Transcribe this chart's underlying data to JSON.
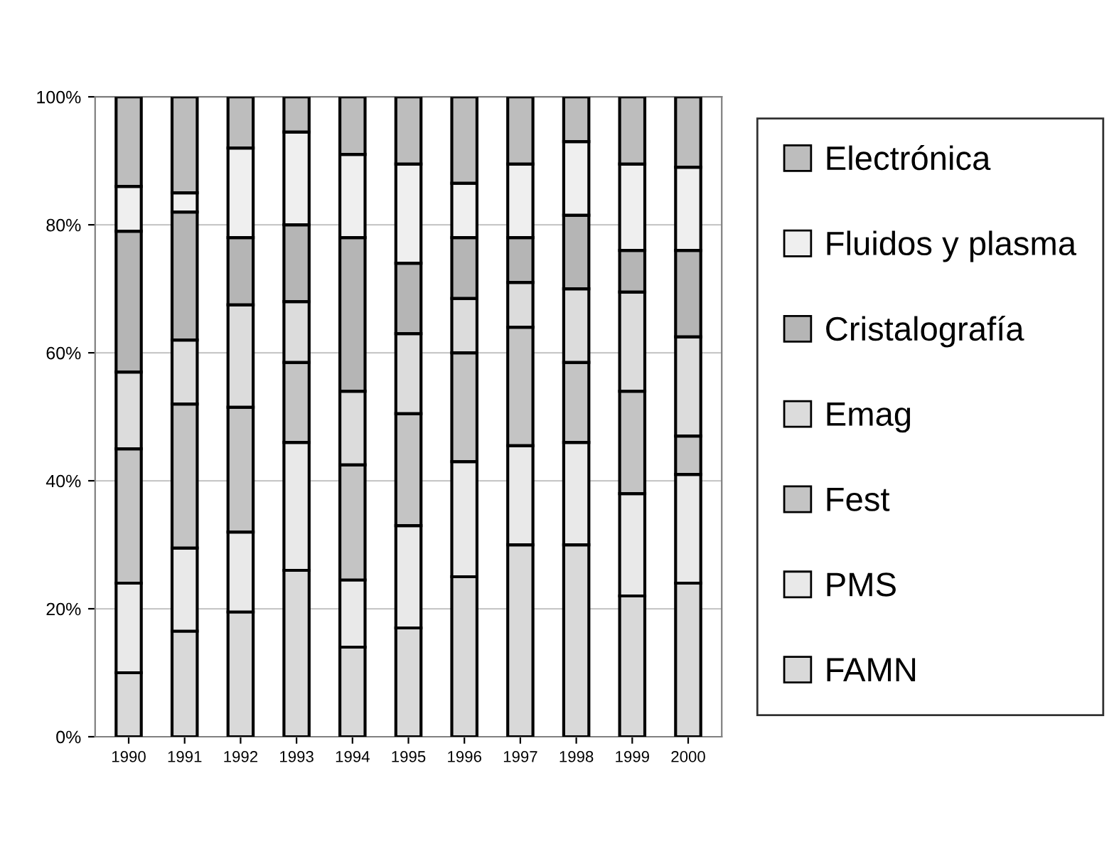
{
  "chart_data": {
    "type": "bar",
    "stacked": true,
    "categories": [
      "1990",
      "1991",
      "1992",
      "1993",
      "1994",
      "1995",
      "1996",
      "1997",
      "1998",
      "1999",
      "2000"
    ],
    "series": [
      {
        "name": "FAMN",
        "color": "#d9d9d9",
        "values": [
          10,
          16.5,
          19.5,
          26,
          14,
          17,
          25,
          30,
          30,
          22,
          24
        ]
      },
      {
        "name": "PMS",
        "color": "#e9e9e9",
        "values": [
          14,
          13,
          12.5,
          20,
          10.5,
          16,
          18,
          15.5,
          16,
          16,
          17
        ]
      },
      {
        "name": "Fest",
        "color": "#c4c4c4",
        "values": [
          21,
          22.5,
          19.5,
          12.5,
          18,
          17.5,
          17,
          18.5,
          12.5,
          16,
          6
        ]
      },
      {
        "name": "Emag",
        "color": "#dcdcdc",
        "values": [
          12,
          10,
          16,
          9.5,
          11.5,
          12.5,
          8.5,
          7,
          11.5,
          15.5,
          15.5
        ]
      },
      {
        "name": "Cristalografía",
        "color": "#b5b5b5",
        "values": [
          22,
          20,
          10.5,
          12,
          24,
          11,
          9.5,
          7,
          11.5,
          6.5,
          13.5
        ]
      },
      {
        "name": "Fluidos y plasma",
        "color": "#efefef",
        "values": [
          7,
          3,
          14,
          14.5,
          13,
          15.5,
          8.5,
          11.5,
          11.5,
          13.5,
          13
        ]
      },
      {
        "name": "Electrónica",
        "color": "#bdbdbd",
        "values": [
          14,
          15,
          8,
          5.5,
          9,
          10.5,
          13.5,
          10.5,
          7,
          10.5,
          11
        ]
      }
    ],
    "ylim": [
      0,
      100
    ],
    "yticks": [
      {
        "value": 0,
        "label": "0%"
      },
      {
        "value": 20,
        "label": "20%"
      },
      {
        "value": 40,
        "label": "40%"
      },
      {
        "value": 60,
        "label": "60%"
      },
      {
        "value": 80,
        "label": "80%"
      },
      {
        "value": 100,
        "label": "100%"
      }
    ],
    "grid": "y",
    "legend": "right"
  }
}
